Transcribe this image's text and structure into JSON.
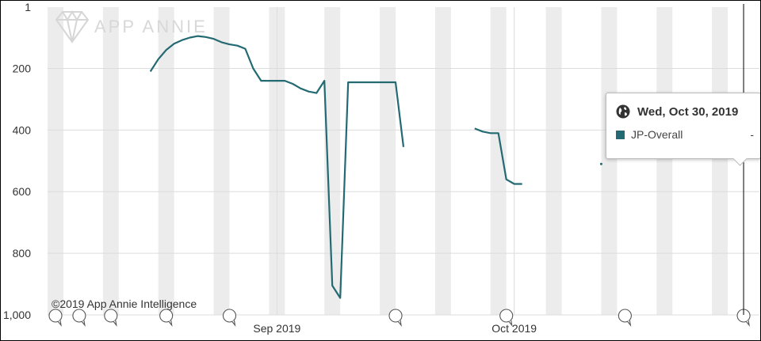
{
  "chart_data": {
    "type": "line",
    "y_reversed": true,
    "y_ticks": [
      "1",
      "200",
      "400",
      "600",
      "800",
      "1,000"
    ],
    "y_tick_values": [
      1,
      200,
      400,
      600,
      800,
      1000
    ],
    "ylim": [
      1,
      1000
    ],
    "x_range": [
      "2019-08-03",
      "2019-11-01"
    ],
    "x_tick_labels": [
      {
        "label": "Sep 2019",
        "date": "2019-09-01"
      },
      {
        "label": "Oct 2019",
        "date": "2019-10-01"
      }
    ],
    "weekend_bands": [
      "2019-08-03",
      "2019-08-10",
      "2019-08-17",
      "2019-08-24",
      "2019-08-31",
      "2019-09-07",
      "2019-09-14",
      "2019-09-21",
      "2019-09-28",
      "2019-10-05",
      "2019-10-12",
      "2019-10-19",
      "2019-10-26"
    ],
    "grid": true,
    "series": [
      {
        "name": "JP-Overall",
        "color": "#236a72",
        "segments": [
          [
            [
              "2019-08-16",
              210
            ],
            [
              "2019-08-17",
              170
            ],
            [
              "2019-08-18",
              140
            ],
            [
              "2019-08-19",
              120
            ],
            [
              "2019-08-20",
              108
            ],
            [
              "2019-08-21",
              100
            ],
            [
              "2019-08-22",
              95
            ],
            [
              "2019-08-23",
              98
            ],
            [
              "2019-08-24",
              104
            ],
            [
              "2019-08-25",
              115
            ],
            [
              "2019-08-26",
              122
            ],
            [
              "2019-08-27",
              126
            ],
            [
              "2019-08-28",
              136
            ],
            [
              "2019-08-29",
              200
            ],
            [
              "2019-08-30",
              240
            ],
            [
              "2019-08-31",
              240
            ],
            [
              "2019-09-01",
              240
            ],
            [
              "2019-09-02",
              240
            ],
            [
              "2019-09-03",
              250
            ],
            [
              "2019-09-04",
              265
            ],
            [
              "2019-09-05",
              275
            ],
            [
              "2019-09-06",
              280
            ],
            [
              "2019-09-07",
              240
            ],
            [
              "2019-09-08",
              905
            ],
            [
              "2019-09-09",
              945
            ],
            [
              "2019-09-10",
              245
            ],
            [
              "2019-09-11",
              245
            ],
            [
              "2019-09-12",
              245
            ],
            [
              "2019-09-13",
              245
            ],
            [
              "2019-09-14",
              245
            ],
            [
              "2019-09-15",
              245
            ],
            [
              "2019-09-16",
              245
            ],
            [
              "2019-09-17",
              455
            ]
          ],
          [
            [
              "2019-09-26",
              395
            ],
            [
              "2019-09-27",
              405
            ],
            [
              "2019-09-28",
              410
            ],
            [
              "2019-09-29",
              410
            ],
            [
              "2019-09-30",
              560
            ],
            [
              "2019-10-01",
              575
            ],
            [
              "2019-10-02",
              575
            ]
          ],
          [
            [
              "2019-10-12",
              510
            ]
          ]
        ]
      }
    ],
    "annotation_dates": [
      "2019-08-04",
      "2019-08-07",
      "2019-08-11",
      "2019-08-18",
      "2019-08-26",
      "2019-09-16",
      "2019-09-30",
      "2019-10-15",
      "2019-10-30"
    ],
    "crosshair_date": "2019-10-30"
  },
  "watermark": "APP ANNIE",
  "copyright": "©2019 App Annie Intelligence",
  "tooltip": {
    "date": "Wed, Oct 30, 2019",
    "series_name": "JP-Overall",
    "series_color": "#236a72",
    "value": "-"
  },
  "colors": {
    "band": "#ececec",
    "grid": "#dcdcdc",
    "line": "#236a72",
    "crosshair": "#000000"
  }
}
